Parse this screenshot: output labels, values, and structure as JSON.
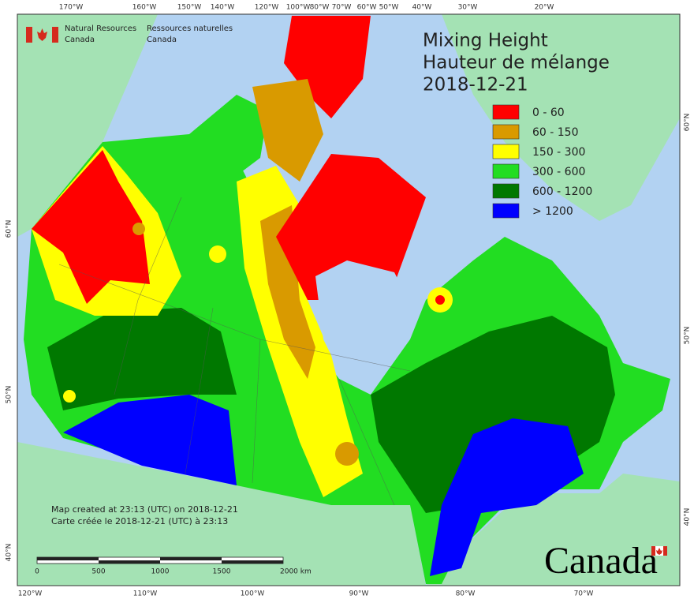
{
  "agency": {
    "en_line1": "Natural Resources",
    "en_line2": "Canada",
    "fr_line1": "Ressources naturelles",
    "fr_line2": "Canada"
  },
  "title": {
    "line1": "Mixing Height",
    "line2": "Hauteur de mélange",
    "date": "2018-12-21"
  },
  "legend": [
    {
      "label": "0 - 60",
      "color": "#ff0000"
    },
    {
      "label": "60 - 150",
      "color": "#d99a00"
    },
    {
      "label": "150 - 300",
      "color": "#ffff00"
    },
    {
      "label": "300 - 600",
      "color": "#22dd22"
    },
    {
      "label": "600 - 1200",
      "color": "#007800"
    },
    {
      "label": "> 1200",
      "color": "#0000ff"
    }
  ],
  "axes": {
    "top": [
      "170°W",
      "160°W",
      "150°W",
      "140°W",
      "120°W",
      "100°W",
      "80°W",
      "70°W",
      "60°W",
      "50°W",
      "40°W",
      "30°W",
      "20°W"
    ],
    "bottom": [
      "120°W",
      "110°W",
      "100°W",
      "90°W",
      "80°W",
      "70°W"
    ],
    "left": [
      "60°N",
      "50°N",
      "40°N"
    ],
    "right": [
      "60°N",
      "50°N",
      "40°N"
    ]
  },
  "footer": {
    "created_en": "Map created at 23:13 (UTC) on 2018-12-21",
    "created_fr": "Carte créée le 2018-12-21 (UTC) à 23:13"
  },
  "scale_bar": [
    "0",
    "500",
    "1000",
    "1500",
    "2000 km"
  ],
  "wordmark": "Canada"
}
